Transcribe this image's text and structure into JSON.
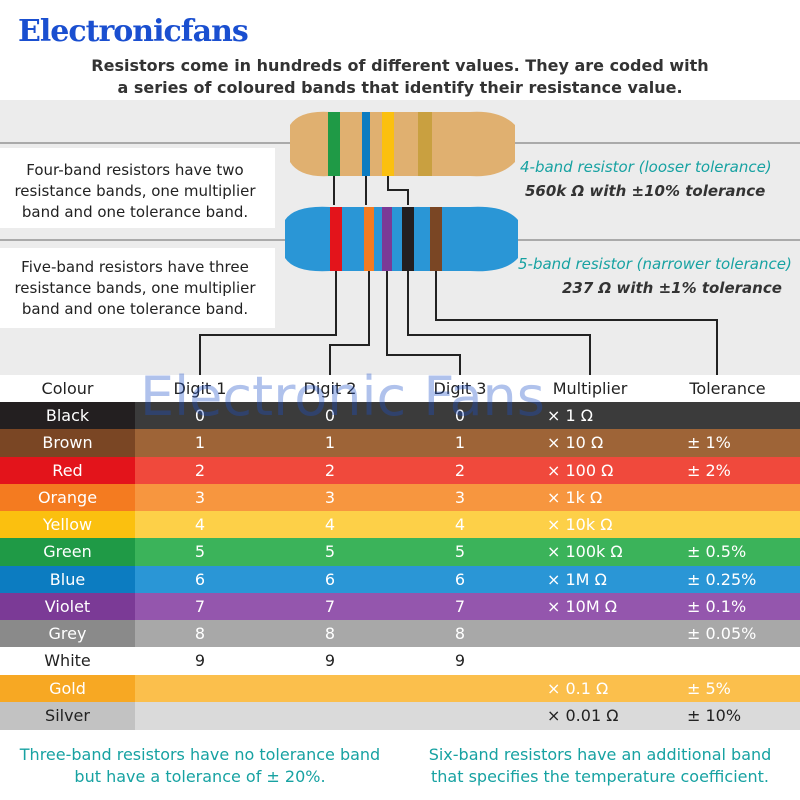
{
  "brand": "Electronicfans",
  "intro": [
    "Resistors come in hundreds of different values. They are coded with",
    "a series of coloured bands that identify their resistance value."
  ],
  "four_band": {
    "description": [
      "Four-band resistors have two",
      "resistance bands, one multiplier",
      "band and one tolerance band."
    ],
    "label": "4-band resistor (looser tolerance)",
    "value": "560k Ω with ±10% tolerance"
  },
  "five_band": {
    "description": [
      "Five-band resistors have three",
      "resistance bands, one multiplier",
      "band and one tolerance band."
    ],
    "label": "5-band resistor (narrower tolerance)",
    "value": "237 Ω with ±1% tolerance"
  },
  "watermark": "Electronic Fans",
  "table": {
    "header": [
      "Colour",
      "Digit 1",
      "Digit 2",
      "Digit 3",
      "Multiplier",
      "Tolerance"
    ],
    "rows": [
      {
        "cells": [
          "Black",
          "0",
          "0",
          "0",
          "× 1 Ω",
          null
        ],
        "color": [
          "#231f20",
          "#3b3b3b"
        ]
      },
      {
        "cells": [
          "Brown",
          "1",
          "1",
          "1",
          "× 10 Ω",
          "± 1%"
        ],
        "color": [
          "#7a4624",
          "#9e6437"
        ]
      },
      {
        "cells": [
          "Red",
          "2",
          "2",
          "2",
          "× 100 Ω",
          "± 2%"
        ],
        "color": [
          "#e3141b",
          "#f0493c"
        ]
      },
      {
        "cells": [
          "Orange",
          "3",
          "3",
          "3",
          "× 1k Ω",
          null
        ],
        "color": [
          "#f47b20",
          "#f7963f"
        ]
      },
      {
        "cells": [
          "Yellow",
          "4",
          "4",
          "4",
          "× 10k Ω",
          null
        ],
        "color": [
          "#fbc00f",
          "#fdd048"
        ]
      },
      {
        "cells": [
          "Green",
          "5",
          "5",
          "5",
          "× 100k Ω",
          "± 0.5%"
        ],
        "color": [
          "#1f9a46",
          "#3bb35a"
        ]
      },
      {
        "cells": [
          "Blue",
          "6",
          "6",
          "6",
          "× 1M Ω",
          "± 0.25%"
        ],
        "color": [
          "#0c7cc1",
          "#2a96d6"
        ]
      },
      {
        "cells": [
          "Violet",
          "7",
          "7",
          "7",
          "× 10M Ω",
          "± 0.1%"
        ],
        "color": [
          "#7b3a96",
          "#9456ad"
        ]
      },
      {
        "cells": [
          "Grey",
          "8",
          "8",
          "8",
          null,
          "± 0.05%"
        ],
        "color": [
          "#8a8a8a",
          "#a8a8a8"
        ]
      },
      {
        "cells": [
          "White",
          "9",
          "9",
          "9",
          null,
          null
        ],
        "color": [
          "#ffffff",
          "#ffffff"
        ]
      },
      {
        "cells": [
          "Gold",
          null,
          null,
          null,
          "× 0.1 Ω",
          "± 5%"
        ],
        "color": [
          "#f7a823",
          "#fbbf4c"
        ]
      },
      {
        "cells": [
          "Silver",
          null,
          null,
          null,
          "× 0.01 Ω",
          "± 10%"
        ],
        "color": [
          "#c2c2c2",
          "#dadada"
        ]
      }
    ]
  },
  "footnotes": [
    [
      "Three-band resistors have no tolerance band",
      "but have a tolerance of ± 20%."
    ],
    [
      "Six-band resistors have an additional band",
      "that specifies the temperature coefficient."
    ]
  ]
}
